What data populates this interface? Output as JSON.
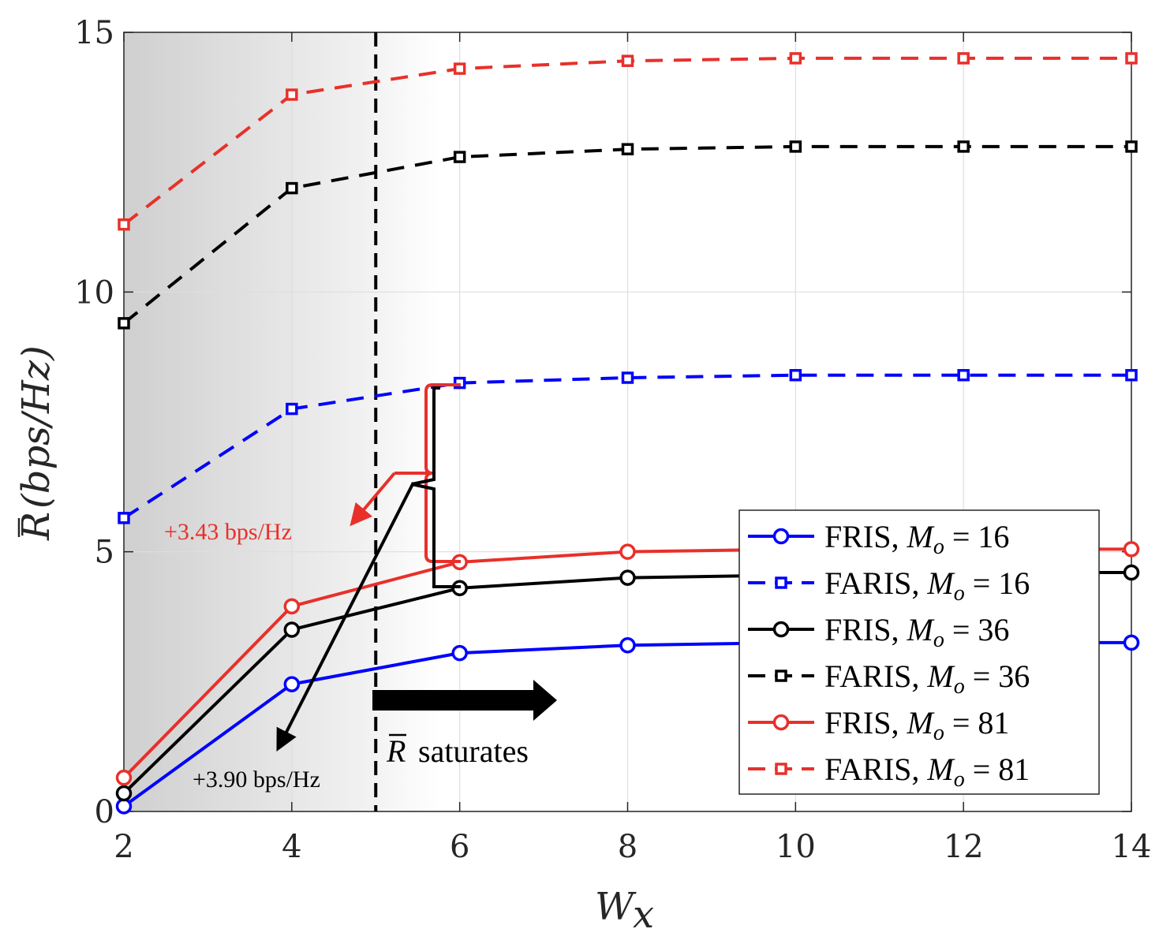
{
  "chart_data": {
    "type": "line",
    "xlabel": "W_x",
    "ylabel": "R̄ (bps/Hz)",
    "xlim": [
      2,
      14
    ],
    "ylim": [
      0,
      15
    ],
    "xticks": [
      "2",
      "4",
      "6",
      "8",
      "10",
      "12",
      "14"
    ],
    "yticks": [
      "0",
      "5",
      "10",
      "15"
    ],
    "grid": true,
    "legend_position": "bottom-right",
    "x": [
      2,
      4,
      6,
      8,
      10,
      12,
      14
    ],
    "series": [
      {
        "name": "FRIS, M_o = 16",
        "label_main": "FRIS, ",
        "label_var": "M",
        "label_sub": "o",
        "label_rest": " = 16",
        "color": "#0000ff",
        "dash": false,
        "marker": "circle",
        "values": [
          0.1,
          2.45,
          3.05,
          3.2,
          3.25,
          3.25,
          3.25
        ]
      },
      {
        "name": "FARIS, M_o = 16",
        "label_main": "FARIS, ",
        "label_var": "M",
        "label_sub": "o",
        "label_rest": " = 16",
        "color": "#0000ff",
        "dash": true,
        "marker": "square",
        "values": [
          5.65,
          7.75,
          8.25,
          8.35,
          8.4,
          8.4,
          8.4
        ]
      },
      {
        "name": "FRIS, M_o = 36",
        "label_main": "FRIS, ",
        "label_var": "M",
        "label_sub": "o",
        "label_rest": " = 36",
        "color": "#000000",
        "dash": false,
        "marker": "circle",
        "values": [
          0.35,
          3.5,
          4.3,
          4.5,
          4.55,
          4.6,
          4.6
        ]
      },
      {
        "name": "FARIS, M_o = 36",
        "label_main": "FARIS, ",
        "label_var": "M",
        "label_sub": "o",
        "label_rest": " = 36",
        "color": "#000000",
        "dash": true,
        "marker": "square",
        "values": [
          9.4,
          12.0,
          12.6,
          12.75,
          12.8,
          12.8,
          12.8
        ]
      },
      {
        "name": "FRIS, M_o = 81",
        "label_main": "FRIS, ",
        "label_var": "M",
        "label_sub": "o",
        "label_rest": " = 81",
        "color": "#e8302a",
        "dash": false,
        "marker": "circle",
        "values": [
          0.65,
          3.95,
          4.8,
          5.0,
          5.05,
          5.05,
          5.05
        ]
      },
      {
        "name": "FARIS, M_o = 81",
        "label_main": "FARIS, ",
        "label_var": "M",
        "label_sub": "o",
        "label_rest": " = 81",
        "color": "#e8302a",
        "dash": true,
        "marker": "square",
        "values": [
          11.3,
          13.8,
          14.3,
          14.45,
          14.5,
          14.5,
          14.5
        ]
      }
    ],
    "threshold_x": 5,
    "annotations": {
      "red_gain": "+3.43 bps/Hz",
      "black_gain": "+3.90 bps/Hz",
      "saturates": "saturates"
    }
  }
}
